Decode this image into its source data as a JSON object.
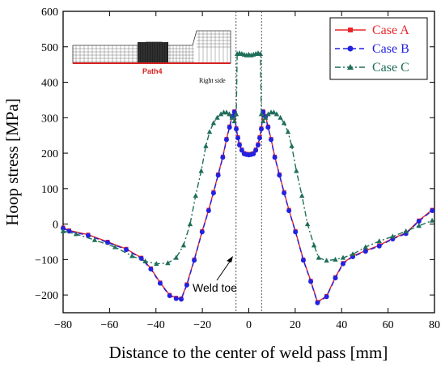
{
  "chart_data": {
    "type": "line",
    "xlabel": "Distance to the center of weld pass [mm]",
    "ylabel": "Hoop stress [MPa]",
    "xlim": [
      -80,
      80
    ],
    "ylim": [
      -250,
      600
    ],
    "xticks": [
      -80,
      -60,
      -40,
      -20,
      0,
      20,
      40,
      60,
      80
    ],
    "yticks": [
      -200,
      -100,
      0,
      100,
      200,
      300,
      400,
      500,
      600
    ],
    "xtick_labels": [
      "-80",
      "-60",
      "-40",
      "-20",
      "0",
      "20",
      "40",
      "60",
      "80"
    ],
    "ytick_labels": [
      "-200",
      "-100",
      "0",
      "100",
      "200",
      "300",
      "400",
      "500",
      "600"
    ],
    "grid": false,
    "legend_position": "top-right",
    "series": [
      {
        "name": "Case A",
        "color": "#e8262a",
        "line": "solid",
        "marker": "square",
        "x": [
          -80,
          -77.4,
          -69.2,
          -60.8,
          -52.8,
          -46.3,
          -42.2,
          -38.2,
          -34.1,
          -31.3,
          -29.1,
          -26.7,
          -23.5,
          -20.1,
          -17.3,
          -15.2,
          -13.2,
          -11.2,
          -9.6,
          -8.3,
          -7.2,
          -6.2,
          -5.4,
          -4.7,
          -4,
          -3,
          -2,
          -1,
          0,
          1,
          2,
          3,
          4,
          4.7,
          5.4,
          6.2,
          7.2,
          8.3,
          9.6,
          11.2,
          13.2,
          15.2,
          17.3,
          20.1,
          23.5,
          26.7,
          29.6,
          33.5,
          37.3,
          40.6,
          44.8,
          50.3,
          56.2,
          62,
          67.7,
          73.3,
          79
        ],
        "values": [
          -10,
          -18,
          -30,
          -50,
          -70,
          -95,
          -125,
          -165,
          -200,
          -208,
          -210,
          -170,
          -100,
          -20,
          40,
          90,
          140,
          190,
          240,
          275,
          305,
          318,
          270,
          245,
          225,
          210,
          200,
          198,
          197,
          198,
          200,
          210,
          225,
          245,
          270,
          318,
          305,
          275,
          240,
          190,
          140,
          90,
          40,
          -20,
          -100,
          -160,
          -220,
          -203,
          -150,
          -110,
          -90,
          -75,
          -60,
          -40,
          -25,
          10,
          40
        ]
      },
      {
        "name": "Case B",
        "color": "#2222e0",
        "line": "dashed",
        "marker": "circle",
        "x": [
          -80,
          -77.4,
          -69.2,
          -60.8,
          -52.8,
          -46.3,
          -42.2,
          -38.2,
          -34.1,
          -31.3,
          -29.1,
          -26.7,
          -23.5,
          -20.1,
          -17.3,
          -15.2,
          -13.2,
          -11.2,
          -9.6,
          -8.3,
          -7.2,
          -6.2,
          -5.4,
          -4.7,
          -4,
          -3,
          -2,
          -1,
          0,
          1,
          2,
          3,
          4,
          4.7,
          5.4,
          6.2,
          7.2,
          8.3,
          9.6,
          11.2,
          13.2,
          15.2,
          17.3,
          20.1,
          23.5,
          26.7,
          29.6,
          33.5,
          37.3,
          40.6,
          44.8,
          50.3,
          56.2,
          62,
          67.7,
          73.3,
          79
        ],
        "values": [
          -12,
          -20,
          -32,
          -52,
          -72,
          -97,
          -127,
          -167,
          -202,
          -210,
          -212,
          -172,
          -102,
          -22,
          38,
          88,
          138,
          188,
          238,
          273,
          303,
          316,
          268,
          243,
          223,
          208,
          198,
          196,
          195,
          196,
          198,
          208,
          223,
          243,
          268,
          316,
          303,
          273,
          238,
          188,
          138,
          88,
          38,
          -22,
          -102,
          -162,
          -222,
          -205,
          -152,
          -112,
          -92,
          -77,
          -62,
          -42,
          -27,
          8,
          38
        ]
      },
      {
        "name": "Case C",
        "color": "#1f6e5a",
        "line": "dashdot",
        "marker": "triangle",
        "x": [
          -80,
          -74.4,
          -66.4,
          -57.6,
          -50.3,
          -44.6,
          -39.8,
          -34.9,
          -31.3,
          -28.1,
          -25.3,
          -22.9,
          -20.5,
          -18.5,
          -16.9,
          -15.2,
          -13.6,
          -12,
          -10.8,
          -9.6,
          -8.4,
          -7.2,
          -6.2,
          -5.4,
          -5,
          -4,
          -3,
          -2,
          -1,
          0,
          1,
          2,
          3,
          4,
          5,
          5.4,
          6.2,
          7.2,
          8.4,
          9.6,
          10.8,
          12,
          13.6,
          15.2,
          16.9,
          18.5,
          20.5,
          22.9,
          25.3,
          28.1,
          30.1,
          33.5,
          37.3,
          40.6,
          44.8,
          50.3,
          56.2,
          62,
          67.7,
          73.3,
          79
        ],
        "values": [
          -20,
          -28,
          -45,
          -65,
          -90,
          -105,
          -112,
          -110,
          -95,
          -60,
          0,
          80,
          150,
          220,
          260,
          285,
          300,
          310,
          315,
          315,
          310,
          300,
          290,
          310,
          480,
          482,
          480,
          478,
          476,
          478,
          476,
          478,
          480,
          482,
          480,
          310,
          290,
          300,
          310,
          315,
          315,
          310,
          300,
          285,
          260,
          220,
          150,
          80,
          0,
          -60,
          -95,
          -103,
          -100,
          -95,
          -85,
          -65,
          -48,
          -35,
          -20,
          -5,
          10
        ]
      }
    ],
    "annotations": [
      {
        "text": "Weld toe",
        "arrow_to": [
          -5.5,
          -90
        ]
      }
    ],
    "reference_lines_x": [
      -5.5,
      5.5
    ],
    "inset": {
      "path_label": "Path4",
      "side_label": "Right side"
    }
  }
}
